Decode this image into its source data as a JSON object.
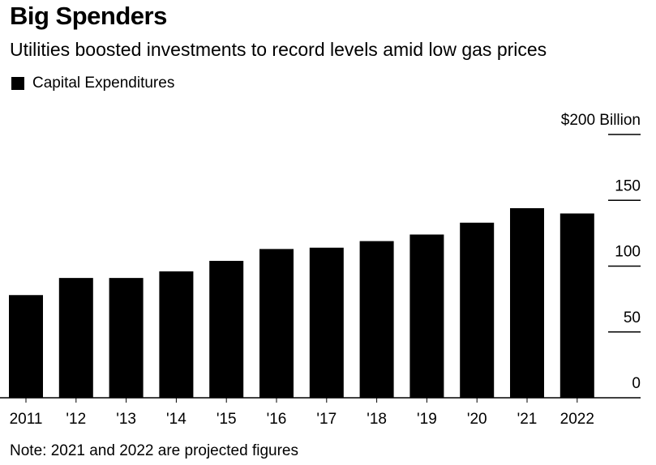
{
  "chart_data": {
    "type": "bar",
    "title": "Big Spenders",
    "subtitle": "Utilities boosted investments to record levels amid low gas prices",
    "legend": [
      {
        "name": "Capital Expenditures",
        "color": "#000000"
      }
    ],
    "legend_placement": "top-left",
    "categories": [
      "2011",
      "'12",
      "'13",
      "'14",
      "'15",
      "'16",
      "'17",
      "'18",
      "'19",
      "'20",
      "'21",
      "2022"
    ],
    "series": [
      {
        "name": "Capital Expenditures",
        "values": [
          78,
          91,
          91,
          96,
          104,
          113,
          114,
          119,
          124,
          133,
          144,
          140
        ]
      }
    ],
    "ylim": [
      0,
      200
    ],
    "yticks": [
      0,
      50,
      100,
      150,
      200
    ],
    "ytick_labels": [
      "0",
      "50",
      "100",
      "150",
      "$200 Billion"
    ],
    "y_axis_side": "right",
    "grid": false,
    "note": "Note: 2021 and 2022 are projected figures"
  }
}
